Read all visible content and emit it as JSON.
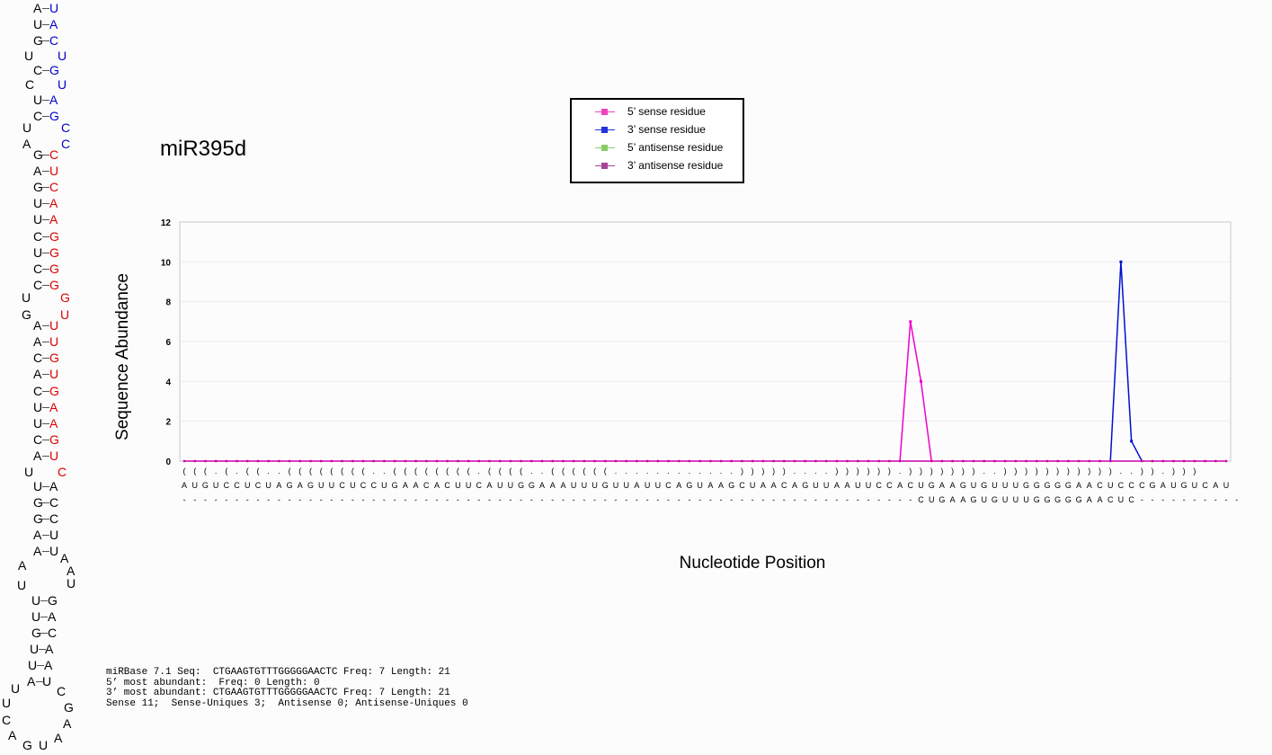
{
  "hairpin": [
    {
      "t": "A",
      "x": 37,
      "y": 2,
      "c": "#000"
    },
    {
      "t": "U",
      "x": 55,
      "y": 2,
      "c": "#0000cc"
    },
    {
      "t": "U",
      "x": 37,
      "y": 20,
      "c": "#000"
    },
    {
      "t": "A",
      "x": 55,
      "y": 20,
      "c": "#0000cc"
    },
    {
      "t": "G",
      "x": 37,
      "y": 38,
      "c": "#000"
    },
    {
      "t": "C",
      "x": 55,
      "y": 38,
      "c": "#0000cc"
    },
    {
      "t": "U",
      "x": 27,
      "y": 55,
      "c": "#000"
    },
    {
      "t": "U",
      "x": 64,
      "y": 55,
      "c": "#0000cc"
    },
    {
      "t": "C",
      "x": 37,
      "y": 71,
      "c": "#000"
    },
    {
      "t": "G",
      "x": 55,
      "y": 71,
      "c": "#0000cc"
    },
    {
      "t": "C",
      "x": 28,
      "y": 87,
      "c": "#000"
    },
    {
      "t": "U",
      "x": 64,
      "y": 87,
      "c": "#0000cc"
    },
    {
      "t": "U",
      "x": 37,
      "y": 104,
      "c": "#000"
    },
    {
      "t": "A",
      "x": 55,
      "y": 104,
      "c": "#0000cc"
    },
    {
      "t": "C",
      "x": 37,
      "y": 122,
      "c": "#000"
    },
    {
      "t": "G",
      "x": 55,
      "y": 122,
      "c": "#0000cc"
    },
    {
      "t": "U",
      "x": 25,
      "y": 135,
      "c": "#000"
    },
    {
      "t": "C",
      "x": 68,
      "y": 135,
      "c": "#0000cc"
    },
    {
      "t": "A",
      "x": 25,
      "y": 153,
      "c": "#000"
    },
    {
      "t": "C",
      "x": 68,
      "y": 153,
      "c": "#0000cc"
    },
    {
      "t": "G",
      "x": 37,
      "y": 165,
      "c": "#000"
    },
    {
      "t": "C",
      "x": 55,
      "y": 165,
      "c": "#dd0000"
    },
    {
      "t": "A",
      "x": 37,
      "y": 183,
      "c": "#000"
    },
    {
      "t": "U",
      "x": 55,
      "y": 183,
      "c": "#dd0000"
    },
    {
      "t": "G",
      "x": 37,
      "y": 201,
      "c": "#000"
    },
    {
      "t": "C",
      "x": 55,
      "y": 201,
      "c": "#dd0000"
    },
    {
      "t": "U",
      "x": 37,
      "y": 219,
      "c": "#000"
    },
    {
      "t": "A",
      "x": 55,
      "y": 219,
      "c": "#dd0000"
    },
    {
      "t": "U",
      "x": 37,
      "y": 237,
      "c": "#000"
    },
    {
      "t": "A",
      "x": 55,
      "y": 237,
      "c": "#dd0000"
    },
    {
      "t": "C",
      "x": 37,
      "y": 256,
      "c": "#000"
    },
    {
      "t": "G",
      "x": 55,
      "y": 256,
      "c": "#dd0000"
    },
    {
      "t": "U",
      "x": 37,
      "y": 274,
      "c": "#000"
    },
    {
      "t": "G",
      "x": 55,
      "y": 274,
      "c": "#dd0000"
    },
    {
      "t": "C",
      "x": 37,
      "y": 292,
      "c": "#000"
    },
    {
      "t": "G",
      "x": 55,
      "y": 292,
      "c": "#dd0000"
    },
    {
      "t": "C",
      "x": 37,
      "y": 310,
      "c": "#000"
    },
    {
      "t": "G",
      "x": 55,
      "y": 310,
      "c": "#dd0000"
    },
    {
      "t": "U",
      "x": 24,
      "y": 324,
      "c": "#000"
    },
    {
      "t": "G",
      "x": 67,
      "y": 324,
      "c": "#dd0000"
    },
    {
      "t": "G",
      "x": 24,
      "y": 343,
      "c": "#000"
    },
    {
      "t": "U",
      "x": 67,
      "y": 343,
      "c": "#dd0000"
    },
    {
      "t": "A",
      "x": 37,
      "y": 355,
      "c": "#000"
    },
    {
      "t": "U",
      "x": 55,
      "y": 355,
      "c": "#dd0000"
    },
    {
      "t": "A",
      "x": 37,
      "y": 373,
      "c": "#000"
    },
    {
      "t": "U",
      "x": 55,
      "y": 373,
      "c": "#dd0000"
    },
    {
      "t": "C",
      "x": 37,
      "y": 391,
      "c": "#000"
    },
    {
      "t": "G",
      "x": 55,
      "y": 391,
      "c": "#dd0000"
    },
    {
      "t": "A",
      "x": 37,
      "y": 409,
      "c": "#000"
    },
    {
      "t": "U",
      "x": 55,
      "y": 409,
      "c": "#dd0000"
    },
    {
      "t": "C",
      "x": 37,
      "y": 428,
      "c": "#000"
    },
    {
      "t": "G",
      "x": 55,
      "y": 428,
      "c": "#dd0000"
    },
    {
      "t": "U",
      "x": 37,
      "y": 446,
      "c": "#000"
    },
    {
      "t": "A",
      "x": 55,
      "y": 446,
      "c": "#dd0000"
    },
    {
      "t": "U",
      "x": 37,
      "y": 464,
      "c": "#000"
    },
    {
      "t": "A",
      "x": 55,
      "y": 464,
      "c": "#dd0000"
    },
    {
      "t": "C",
      "x": 37,
      "y": 482,
      "c": "#000"
    },
    {
      "t": "G",
      "x": 55,
      "y": 482,
      "c": "#dd0000"
    },
    {
      "t": "A",
      "x": 37,
      "y": 500,
      "c": "#000"
    },
    {
      "t": "U",
      "x": 55,
      "y": 500,
      "c": "#dd0000"
    },
    {
      "t": "U",
      "x": 27,
      "y": 518,
      "c": "#000"
    },
    {
      "t": "C",
      "x": 64,
      "y": 518,
      "c": "#dd0000"
    },
    {
      "t": "U",
      "x": 37,
      "y": 534,
      "c": "#000"
    },
    {
      "t": "A",
      "x": 55,
      "y": 534,
      "c": "#000"
    },
    {
      "t": "G",
      "x": 37,
      "y": 552,
      "c": "#000"
    },
    {
      "t": "C",
      "x": 55,
      "y": 552,
      "c": "#000"
    },
    {
      "t": "G",
      "x": 37,
      "y": 570,
      "c": "#000"
    },
    {
      "t": "C",
      "x": 55,
      "y": 570,
      "c": "#000"
    },
    {
      "t": "A",
      "x": 37,
      "y": 588,
      "c": "#000"
    },
    {
      "t": "U",
      "x": 55,
      "y": 588,
      "c": "#000"
    },
    {
      "t": "A",
      "x": 37,
      "y": 606,
      "c": "#000"
    },
    {
      "t": "U",
      "x": 55,
      "y": 606,
      "c": "#000"
    },
    {
      "t": "A",
      "x": 67,
      "y": 614,
      "c": "#000"
    },
    {
      "t": "A",
      "x": 20,
      "y": 622,
      "c": "#000"
    },
    {
      "t": "A",
      "x": 74,
      "y": 628,
      "c": "#000"
    },
    {
      "t": "U",
      "x": 19,
      "y": 644,
      "c": "#000"
    },
    {
      "t": "U",
      "x": 74,
      "y": 642,
      "c": "#000"
    },
    {
      "t": "U",
      "x": 35,
      "y": 661,
      "c": "#000"
    },
    {
      "t": "G",
      "x": 53,
      "y": 661,
      "c": "#000"
    },
    {
      "t": "U",
      "x": 35,
      "y": 679,
      "c": "#000"
    },
    {
      "t": "A",
      "x": 53,
      "y": 679,
      "c": "#000"
    },
    {
      "t": "G",
      "x": 35,
      "y": 697,
      "c": "#000"
    },
    {
      "t": "C",
      "x": 53,
      "y": 697,
      "c": "#000"
    },
    {
      "t": "U",
      "x": 33,
      "y": 715,
      "c": "#000"
    },
    {
      "t": "A",
      "x": 50,
      "y": 715,
      "c": "#000"
    },
    {
      "t": "U",
      "x": 31,
      "y": 733,
      "c": "#000"
    },
    {
      "t": "A",
      "x": 49,
      "y": 733,
      "c": "#000"
    },
    {
      "t": "A",
      "x": 30,
      "y": 751,
      "c": "#000"
    },
    {
      "t": "U",
      "x": 47,
      "y": 751,
      "c": "#000"
    },
    {
      "t": "U",
      "x": 12,
      "y": 759,
      "c": "#000"
    },
    {
      "t": "C",
      "x": 63,
      "y": 762,
      "c": "#000"
    },
    {
      "t": "U",
      "x": 2,
      "y": 775,
      "c": "#000"
    },
    {
      "t": "G",
      "x": 71,
      "y": 780,
      "c": "#000"
    },
    {
      "t": "C",
      "x": 2,
      "y": 794,
      "c": "#000"
    },
    {
      "t": "A",
      "x": 70,
      "y": 798,
      "c": "#000"
    },
    {
      "t": "A",
      "x": 9,
      "y": 811,
      "c": "#000"
    },
    {
      "t": "A",
      "x": 60,
      "y": 814,
      "c": "#000"
    },
    {
      "t": "G",
      "x": 25,
      "y": 822,
      "c": "#000"
    },
    {
      "t": "U",
      "x": 43,
      "y": 822,
      "c": "#000"
    }
  ],
  "bonds_y": [
    9,
    27,
    45,
    78,
    111,
    129,
    172,
    190,
    208,
    226,
    244,
    263,
    281,
    299,
    317,
    362,
    380,
    398,
    416,
    435,
    453,
    471,
    489,
    507,
    541,
    559,
    577,
    595,
    613,
    668,
    686,
    704,
    722,
    740,
    758
  ],
  "title": "miR395d",
  "legend": [
    {
      "label": "5’ sense residue",
      "color": "#ee44bb"
    },
    {
      "label": "3’ sense residue",
      "color": "#2233dd"
    },
    {
      "label": "5’ antisense residue",
      "color": "#88cc66"
    },
    {
      "label": "3’ antisense residue",
      "color": "#aa4499"
    }
  ],
  "chart_data": {
    "type": "line",
    "ylabel": "Sequence Abundance",
    "xlabel": "Nucleotide Position",
    "ylim": [
      0,
      12
    ],
    "yticks": [
      0,
      2,
      4,
      6,
      8,
      10,
      12
    ],
    "grid": true,
    "structure": "(((.(.((..((((((((..((((((((.((((..((((((............)))))....)))))).)))))))..)))))))))))..)).)))",
    "sequence": "AUGUCCUCUAGAGUUCUCCUGAACACUUCAUUGGAAAUUUGUUAUUCAGUAAGCUAACAGUUAAUUCCACUGAAGUGUUUGGGGGAACUCCCGAUGUCAU",
    "read": "----------------------------------------------------------------------CUGAAGUGUUUGGGGGAACUC----------",
    "series": [
      {
        "name": "5’ sense residue",
        "color": "#ee00cc",
        "spikes": [
          [
            68,
            0
          ],
          [
            69,
            7
          ],
          [
            70,
            4
          ],
          [
            71,
            0
          ]
        ]
      },
      {
        "name": "3’ sense residue",
        "color": "#0011cc",
        "spikes": [
          [
            88,
            0
          ],
          [
            89,
            10
          ],
          [
            90,
            1
          ],
          [
            91,
            0
          ]
        ]
      }
    ]
  },
  "info": [
    "miRBase 7.1 Seq:  CTGAAGTGTTTGGGGGAACTC Freq: 7 Length: 21",
    "5’ most abundant:  Freq: 0 Length: 0",
    "3’ most abundant: CTGAAGTGTTTGGGGGAACTC Freq: 7 Length: 21",
    "Sense 11;  Sense-Uniques 3;  Antisense 0; Antisense-Uniques 0"
  ]
}
